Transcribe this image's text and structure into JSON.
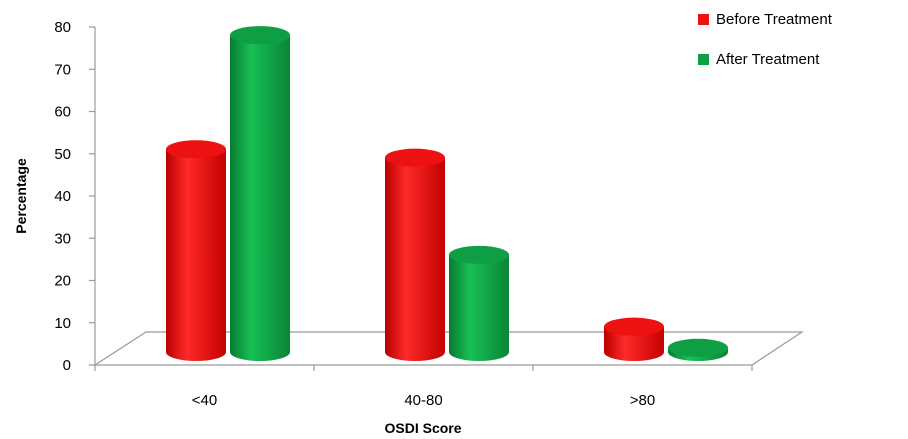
{
  "chart_data": {
    "type": "bar",
    "title": "",
    "xlabel": "OSDI Score",
    "ylabel": "Percentage",
    "categories": [
      "<40",
      "40-80",
      ">80"
    ],
    "series": [
      {
        "name": "Before Treatment",
        "values": [
          48,
          46,
          6
        ],
        "color": "#ee1111"
      },
      {
        "name": "After Treatment",
        "values": [
          75,
          23,
          1
        ],
        "color": "#0e9f44"
      }
    ],
    "ylim": [
      0,
      80
    ],
    "yticks": [
      0,
      10,
      20,
      30,
      40,
      50,
      60,
      70,
      80
    ],
    "grid": false,
    "legend_position": "top-right",
    "style": "3d-cylinder"
  }
}
